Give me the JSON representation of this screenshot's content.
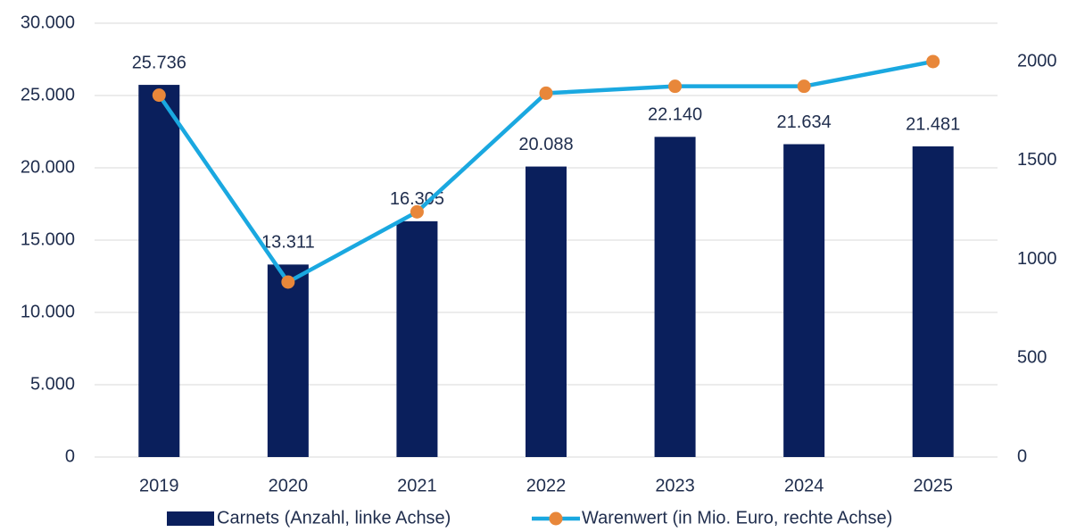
{
  "chart_data": {
    "type": "bar_line",
    "categories": [
      "2019",
      "2020",
      "2021",
      "2022",
      "2023",
      "2024",
      "2025"
    ],
    "series": [
      {
        "name": "Carnets (Anzahl, linke Achse)",
        "type": "bar",
        "color": "#0a1f5c",
        "values": [
          25736,
          13311,
          16305,
          20088,
          22140,
          21634,
          21481
        ],
        "value_labels": [
          "25.736",
          "13.311",
          "16.305",
          "20.088",
          "22.140",
          "21.634",
          "21.481"
        ]
      },
      {
        "name": "Warenwert (in Mio. Euro, rechte Achse)",
        "type": "line",
        "axis": "y2",
        "color": "#1aa8e0",
        "marker_color": "#e8873a",
        "values": [
          1830,
          885,
          1240,
          1840,
          1875,
          1875,
          2000
        ]
      }
    ],
    "ylim": [
      0,
      30000
    ],
    "yticks": [
      {
        "value": 0,
        "label": "0"
      },
      {
        "value": 5000,
        "label": "5.000"
      },
      {
        "value": 10000,
        "label": "10.000"
      },
      {
        "value": 15000,
        "label": "15.000"
      },
      {
        "value": 20000,
        "label": "20.000"
      },
      {
        "value": 25000,
        "label": "25.000"
      },
      {
        "value": 30000,
        "label": "30.000"
      }
    ],
    "y2lim": [
      0,
      2194
    ],
    "y2ticks": [
      0,
      500,
      1000,
      1500,
      2000
    ],
    "grid": true,
    "legend": "bottom"
  }
}
